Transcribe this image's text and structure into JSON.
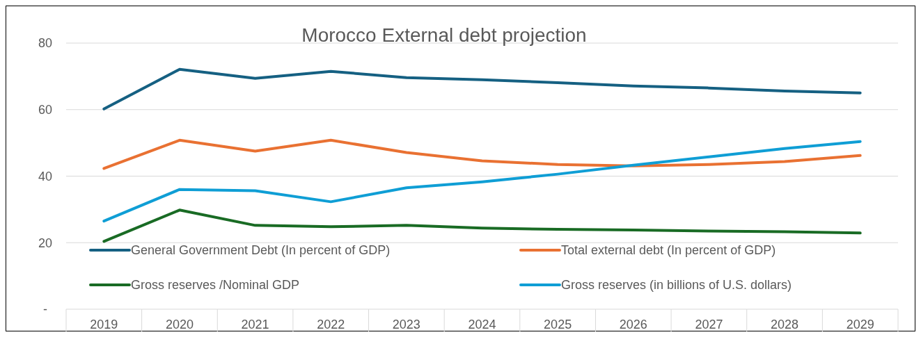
{
  "chart_data": {
    "type": "line",
    "title": "Morocco External debt projection",
    "categories": [
      "2019",
      "2020",
      "2021",
      "2022",
      "2023",
      "2024",
      "2025",
      "2026",
      "2027",
      "2028",
      "2029"
    ],
    "series": [
      {
        "name": "General Government Debt (In percent of GDP)",
        "color": "#156082",
        "values": [
          60.2,
          72.1,
          69.4,
          71.5,
          69.6,
          69.0,
          68.1,
          67.1,
          66.5,
          65.6,
          65.0
        ]
      },
      {
        "name": "Total external debt (In percent of GDP)",
        "color": "#e97132",
        "values": [
          42.3,
          50.8,
          47.5,
          50.8,
          47.1,
          44.6,
          43.5,
          43.1,
          43.5,
          44.4,
          46.2
        ]
      },
      {
        "name": "Gross reserves /Nominal GDP",
        "color": "#196b24",
        "values": [
          20.4,
          29.8,
          25.2,
          24.8,
          25.2,
          24.4,
          24.0,
          23.8,
          23.5,
          23.3,
          22.9
        ]
      },
      {
        "name": "Gross reserves (in billions of U.S. dollars)",
        "color": "#0f9ed5",
        "values": [
          26.5,
          36.0,
          35.6,
          32.3,
          36.5,
          38.3,
          40.6,
          43.3,
          45.8,
          48.3,
          50.4
        ]
      }
    ],
    "ylim": [
      0,
      80
    ],
    "yticks": [
      {
        "value": 0,
        "label": "-"
      },
      20,
      40,
      60,
      80
    ],
    "grid": "y",
    "legend": "bottom",
    "marker": "none",
    "line_style": "solid"
  }
}
